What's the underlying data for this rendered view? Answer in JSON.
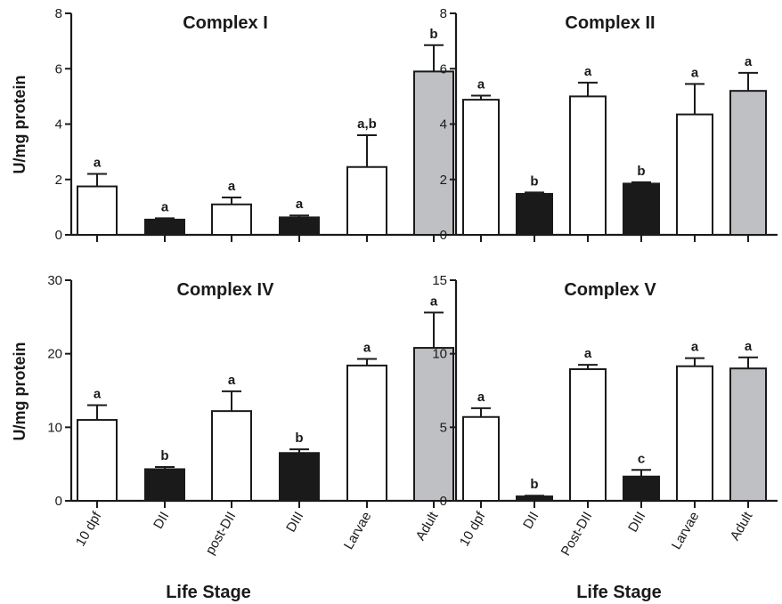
{
  "shared": {
    "xlabel": "Life Stage",
    "ylabel": "U/mg protein"
  },
  "chart_data": [
    {
      "type": "bar",
      "title": "Complex I",
      "ylabel": "U/mg protein",
      "xlabel": "",
      "categories": [
        "10 dpf",
        "DII",
        "post-DII",
        "DIII",
        "Larvae",
        "Adult"
      ],
      "values": [
        1.75,
        0.55,
        1.1,
        0.63,
        2.45,
        5.9
      ],
      "errors": [
        0.45,
        0.05,
        0.25,
        0.07,
        1.15,
        0.95
      ],
      "letters": [
        "a",
        "a",
        "a",
        "a",
        "a,b",
        "b"
      ],
      "fills": [
        "#ffffff",
        "#1a1a1a",
        "#ffffff",
        "#1a1a1a",
        "#ffffff",
        "#bfc0c3"
      ],
      "ylim": [
        0,
        8
      ],
      "yticks": [
        0,
        2,
        4,
        6,
        8
      ],
      "show_categories": false
    },
    {
      "type": "bar",
      "title": "Complex II",
      "ylabel": "",
      "xlabel": "",
      "categories": [
        "10 dpf",
        "DII",
        "Post-DII",
        "DIII",
        "Larvae",
        "Adult"
      ],
      "values": [
        4.88,
        1.48,
        5.0,
        1.85,
        4.35,
        5.2
      ],
      "errors": [
        0.15,
        0.05,
        0.5,
        0.05,
        1.1,
        0.65
      ],
      "letters": [
        "a",
        "b",
        "a",
        "b",
        "a",
        "a"
      ],
      "fills": [
        "#ffffff",
        "#1a1a1a",
        "#ffffff",
        "#1a1a1a",
        "#ffffff",
        "#bfc0c3"
      ],
      "ylim": [
        0,
        8
      ],
      "yticks": [
        0,
        2,
        4,
        6,
        8
      ],
      "show_categories": false
    },
    {
      "type": "bar",
      "title": "Complex IV",
      "ylabel": "U/mg protein",
      "xlabel": "Life Stage",
      "categories": [
        "10 dpf",
        "DII",
        "post-DII",
        "DIII",
        "Larvae",
        "Adult"
      ],
      "values": [
        11.0,
        4.3,
        12.2,
        6.5,
        18.4,
        20.8
      ],
      "errors": [
        2.0,
        0.3,
        2.7,
        0.5,
        0.9,
        4.8
      ],
      "letters": [
        "a",
        "b",
        "a",
        "b",
        "a",
        "a"
      ],
      "fills": [
        "#ffffff",
        "#1a1a1a",
        "#ffffff",
        "#1a1a1a",
        "#ffffff",
        "#bfc0c3"
      ],
      "ylim": [
        0,
        30
      ],
      "yticks": [
        0,
        10,
        20,
        30
      ],
      "show_categories": true
    },
    {
      "type": "bar",
      "title": "Complex V",
      "ylabel": "",
      "xlabel": "Life Stage",
      "categories": [
        "10 dpf",
        "DII",
        "Post-DII",
        "DIII",
        "Larvae",
        "Adult"
      ],
      "values": [
        5.7,
        0.3,
        8.95,
        1.65,
        9.15,
        9.0
      ],
      "errors": [
        0.6,
        0.05,
        0.3,
        0.45,
        0.55,
        0.75
      ],
      "letters": [
        "a",
        "b",
        "a",
        "c",
        "a",
        "a"
      ],
      "fills": [
        "#ffffff",
        "#1a1a1a",
        "#ffffff",
        "#1a1a1a",
        "#ffffff",
        "#bfc0c3"
      ],
      "ylim": [
        0,
        15
      ],
      "yticks": [
        0,
        5,
        10,
        15
      ],
      "show_categories": true
    }
  ]
}
